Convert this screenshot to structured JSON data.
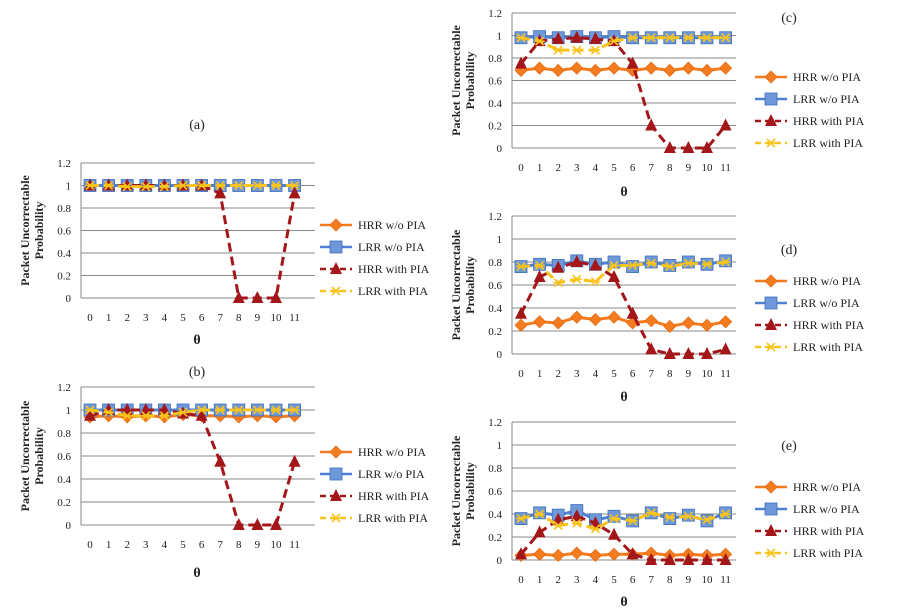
{
  "colors": {
    "HRR w/o PIA": "#F47C20",
    "LRR w/o PIA": "#4F81D0",
    "HRR with PIA": "#A3171A",
    "LRR with PIA": "#F8C31A"
  },
  "chart_data": [
    {
      "id": "a",
      "type": "line",
      "title": "(a)",
      "xlabel": "θ",
      "ylabel": "Packet Uncorrectable Probability",
      "ylim": [
        0,
        1.2
      ],
      "yticks": [
        "0",
        "0.2",
        "0.4",
        "0.6",
        "0.8",
        "1",
        "1.2"
      ],
      "categories": [
        "0",
        "1",
        "2",
        "3",
        "4",
        "5",
        "6",
        "7",
        "8",
        "9",
        "10",
        "11"
      ],
      "grid": true,
      "legend": "right",
      "series": [
        {
          "name": "HRR w/o PIA",
          "values": [
            1,
            1,
            1,
            1,
            1,
            1,
            1,
            1,
            1,
            1,
            1,
            1
          ]
        },
        {
          "name": "LRR w/o PIA",
          "values": [
            1,
            1,
            1,
            1,
            1,
            1,
            1,
            1,
            1,
            1,
            1,
            1
          ]
        },
        {
          "name": "HRR with PIA",
          "values": [
            1,
            1,
            1,
            1,
            1,
            1,
            1,
            0.93,
            0,
            0,
            0,
            0.93
          ]
        },
        {
          "name": "LRR with PIA",
          "values": [
            1,
            1,
            0.99,
            0.99,
            0.99,
            1,
            1,
            1,
            1,
            1,
            1,
            1
          ]
        }
      ]
    },
    {
      "id": "b",
      "type": "line",
      "title": "(b)",
      "xlabel": "θ",
      "ylabel": "Packet Uncorrectable Probability",
      "ylim": [
        0,
        1.2
      ],
      "yticks": [
        "0",
        "0.2",
        "0.4",
        "0.6",
        "0.8",
        "1",
        "1.2"
      ],
      "categories": [
        "0",
        "1",
        "2",
        "3",
        "4",
        "5",
        "6",
        "7",
        "8",
        "9",
        "10",
        "11"
      ],
      "grid": true,
      "legend": "right",
      "series": [
        {
          "name": "HRR w/o PIA",
          "values": [
            0.94,
            0.95,
            0.94,
            0.95,
            0.94,
            0.96,
            0.95,
            0.95,
            0.94,
            0.95,
            0.94,
            0.95
          ]
        },
        {
          "name": "LRR w/o PIA",
          "values": [
            1,
            1,
            1,
            1,
            1,
            1,
            1,
            1,
            1,
            1,
            1,
            1
          ]
        },
        {
          "name": "HRR with PIA",
          "values": [
            0.95,
            1,
            1,
            1,
            1,
            0.97,
            0.95,
            0.55,
            0,
            0,
            0,
            0.55
          ]
        },
        {
          "name": "LRR with PIA",
          "values": [
            1,
            0.98,
            0.95,
            0.95,
            0.95,
            0.98,
            1,
            1,
            1,
            1,
            1,
            1
          ]
        }
      ]
    },
    {
      "id": "c",
      "type": "line",
      "title": "(c)",
      "xlabel": "θ",
      "ylabel": "Packet Uncorrectable Probability",
      "ylim": [
        0,
        1.2
      ],
      "yticks": [
        "0",
        "0.2",
        "0.4",
        "0.6",
        "0.8",
        "1",
        "1.2"
      ],
      "categories": [
        "0",
        "1",
        "2",
        "3",
        "4",
        "5",
        "6",
        "7",
        "8",
        "9",
        "10",
        "11"
      ],
      "grid": true,
      "legend": "right",
      "series": [
        {
          "name": "HRR w/o PIA",
          "values": [
            0.69,
            0.71,
            0.69,
            0.71,
            0.69,
            0.71,
            0.69,
            0.71,
            0.69,
            0.71,
            0.69,
            0.71
          ]
        },
        {
          "name": "LRR w/o PIA",
          "values": [
            0.98,
            0.99,
            0.98,
            0.99,
            0.98,
            0.99,
            0.98,
            0.98,
            0.98,
            0.98,
            0.98,
            0.98
          ]
        },
        {
          "name": "HRR with PIA",
          "values": [
            0.75,
            0.95,
            0.97,
            0.98,
            0.97,
            0.95,
            0.75,
            0.2,
            0,
            0,
            0,
            0.2
          ]
        },
        {
          "name": "LRR with PIA",
          "values": [
            0.98,
            0.95,
            0.87,
            0.87,
            0.87,
            0.95,
            0.98,
            0.98,
            0.98,
            0.98,
            0.98,
            0.98
          ]
        }
      ]
    },
    {
      "id": "d",
      "type": "line",
      "title": "(d)",
      "xlabel": "θ",
      "ylabel": "Packet Uncorrectable Probability",
      "ylim": [
        0,
        1.2
      ],
      "yticks": [
        "0",
        "0.2",
        "0.4",
        "0.6",
        "0.8",
        "1",
        "1.2"
      ],
      "categories": [
        "0",
        "1",
        "2",
        "3",
        "4",
        "5",
        "6",
        "7",
        "8",
        "9",
        "10",
        "11"
      ],
      "grid": true,
      "legend": "right",
      "series": [
        {
          "name": "HRR w/o PIA",
          "values": [
            0.25,
            0.28,
            0.27,
            0.32,
            0.3,
            0.32,
            0.27,
            0.29,
            0.24,
            0.27,
            0.25,
            0.28
          ]
        },
        {
          "name": "LRR w/o PIA",
          "values": [
            0.76,
            0.78,
            0.77,
            0.81,
            0.78,
            0.8,
            0.76,
            0.8,
            0.77,
            0.8,
            0.78,
            0.81
          ]
        },
        {
          "name": "HRR with PIA",
          "values": [
            0.35,
            0.67,
            0.75,
            0.8,
            0.77,
            0.67,
            0.35,
            0.04,
            0,
            0,
            0,
            0.04
          ]
        },
        {
          "name": "LRR with PIA",
          "values": [
            0.76,
            0.77,
            0.62,
            0.65,
            0.63,
            0.77,
            0.77,
            0.79,
            0.76,
            0.79,
            0.78,
            0.8
          ]
        }
      ]
    },
    {
      "id": "e",
      "type": "line",
      "title": "(e)",
      "xlabel": "θ",
      "ylabel": "Packet Uncorrectable Probability",
      "ylim": [
        0,
        1.2
      ],
      "yticks": [
        "0",
        "0.2",
        "0.4",
        "0.6",
        "0.8",
        "1",
        "1.2"
      ],
      "categories": [
        "0",
        "1",
        "2",
        "3",
        "4",
        "5",
        "6",
        "7",
        "8",
        "9",
        "10",
        "11"
      ],
      "grid": true,
      "legend": "right",
      "series": [
        {
          "name": "HRR w/o PIA",
          "values": [
            0.04,
            0.05,
            0.04,
            0.06,
            0.04,
            0.05,
            0.05,
            0.06,
            0.04,
            0.05,
            0.04,
            0.05
          ]
        },
        {
          "name": "LRR w/o PIA",
          "values": [
            0.36,
            0.41,
            0.39,
            0.43,
            0.35,
            0.38,
            0.34,
            0.41,
            0.36,
            0.39,
            0.34,
            0.41
          ]
        },
        {
          "name": "HRR with PIA",
          "values": [
            0.05,
            0.24,
            0.35,
            0.38,
            0.32,
            0.22,
            0.05,
            0,
            0,
            0,
            0,
            0
          ]
        },
        {
          "name": "LRR with PIA",
          "values": [
            0.36,
            0.4,
            0.3,
            0.32,
            0.27,
            0.36,
            0.34,
            0.41,
            0.37,
            0.38,
            0.35,
            0.4
          ]
        }
      ]
    }
  ]
}
